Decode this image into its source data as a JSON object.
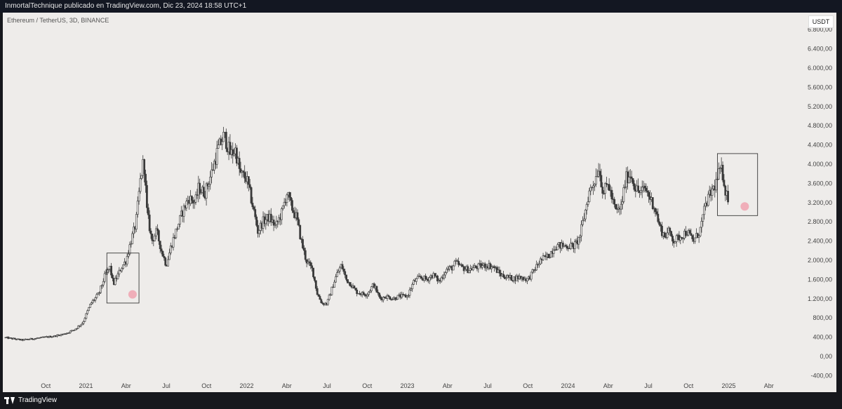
{
  "header": {
    "caption": "InmortalTechnique publicado en TradingView.com, Dic 23, 2024 18:58 UTC+1"
  },
  "symbol_label": "Ethereum / TetherUS, 3D, BINANCE",
  "unit_badge": "USDT",
  "footer": {
    "brand": "TradingView"
  },
  "colors": {
    "background": "#eeecea",
    "candles": "#3a3a3a",
    "highlight": "#f0a3b0",
    "frame": "#222222"
  },
  "chart_data": {
    "type": "candlestick",
    "y_ticks": [
      "-400,00",
      "0,00",
      "400,00",
      "800,00",
      "1.200,00",
      "1.600,00",
      "2.000,00",
      "2.400,00",
      "2.800,00",
      "3.200,00",
      "3.600,00",
      "4.000,00",
      "4.400,00",
      "4.800,00",
      "5.200,00",
      "5.600,00",
      "6.000,00",
      "6.400,00",
      "6.800,00"
    ],
    "y_tick_values": [
      -400,
      0,
      400,
      800,
      1200,
      1600,
      2000,
      2400,
      2800,
      3200,
      3600,
      4000,
      4400,
      4800,
      5200,
      5600,
      6000,
      6400,
      6800
    ],
    "ylim": [
      -400,
      6800
    ],
    "xlim": [
      2020.5,
      2025.42
    ],
    "x_ticks": [
      {
        "label": "Oct",
        "t": 2020.75
      },
      {
        "label": "2021",
        "t": 2021.0
      },
      {
        "label": "Abr",
        "t": 2021.25
      },
      {
        "label": "Jul",
        "t": 2021.5
      },
      {
        "label": "Oct",
        "t": 2021.75
      },
      {
        "label": "2022",
        "t": 2022.0
      },
      {
        "label": "Abr",
        "t": 2022.25
      },
      {
        "label": "Jul",
        "t": 2022.5
      },
      {
        "label": "Oct",
        "t": 2022.75
      },
      {
        "label": "2023",
        "t": 2023.0
      },
      {
        "label": "Abr",
        "t": 2023.25
      },
      {
        "label": "Jul",
        "t": 2023.5
      },
      {
        "label": "Oct",
        "t": 2023.75
      },
      {
        "label": "2024",
        "t": 2024.0
      },
      {
        "label": "Abr",
        "t": 2024.25
      },
      {
        "label": "Jul",
        "t": 2024.5
      },
      {
        "label": "Oct",
        "t": 2024.75
      },
      {
        "label": "2025",
        "t": 2025.0
      },
      {
        "label": "Abr",
        "t": 2025.25
      }
    ],
    "price_path": [
      [
        2020.5,
        390
      ],
      [
        2020.6,
        340
      ],
      [
        2020.7,
        380
      ],
      [
        2020.8,
        420
      ],
      [
        2020.87,
        470
      ],
      [
        2020.93,
        560
      ],
      [
        2020.98,
        700
      ],
      [
        2021.03,
        1100
      ],
      [
        2021.08,
        1300
      ],
      [
        2021.12,
        1700
      ],
      [
        2021.15,
        1850
      ],
      [
        2021.17,
        1500
      ],
      [
        2021.2,
        1700
      ],
      [
        2021.22,
        1850
      ],
      [
        2021.25,
        2000
      ],
      [
        2021.28,
        2400
      ],
      [
        2021.31,
        2750
      ],
      [
        2021.34,
        3700
      ],
      [
        2021.36,
        4100
      ],
      [
        2021.38,
        3000
      ],
      [
        2021.41,
        2400
      ],
      [
        2021.44,
        2600
      ],
      [
        2021.47,
        2200
      ],
      [
        2021.5,
        1900
      ],
      [
        2021.53,
        2300
      ],
      [
        2021.56,
        2600
      ],
      [
        2021.6,
        3000
      ],
      [
        2021.64,
        3300
      ],
      [
        2021.68,
        3200
      ],
      [
        2021.7,
        3500
      ],
      [
        2021.74,
        3400
      ],
      [
        2021.78,
        3800
      ],
      [
        2021.82,
        4300
      ],
      [
        2021.86,
        4600
      ],
      [
        2021.9,
        4200
      ],
      [
        2021.93,
        4300
      ],
      [
        2021.96,
        3800
      ],
      [
        2022.0,
        3700
      ],
      [
        2022.04,
        3100
      ],
      [
        2022.07,
        2600
      ],
      [
        2022.1,
        2800
      ],
      [
        2022.14,
        2900
      ],
      [
        2022.18,
        2700
      ],
      [
        2022.22,
        3000
      ],
      [
        2022.25,
        3400
      ],
      [
        2022.28,
        3100
      ],
      [
        2022.31,
        2900
      ],
      [
        2022.34,
        2400
      ],
      [
        2022.37,
        2000
      ],
      [
        2022.41,
        1800
      ],
      [
        2022.44,
        1300
      ],
      [
        2022.47,
        1100
      ],
      [
        2022.5,
        1100
      ],
      [
        2022.53,
        1400
      ],
      [
        2022.56,
        1700
      ],
      [
        2022.59,
        1900
      ],
      [
        2022.62,
        1600
      ],
      [
        2022.65,
        1500
      ],
      [
        2022.68,
        1350
      ],
      [
        2022.72,
        1300
      ],
      [
        2022.75,
        1300
      ],
      [
        2022.79,
        1500
      ],
      [
        2022.83,
        1200
      ],
      [
        2022.87,
        1250
      ],
      [
        2022.91,
        1200
      ],
      [
        2022.95,
        1250
      ],
      [
        2023.0,
        1250
      ],
      [
        2023.04,
        1550
      ],
      [
        2023.08,
        1650
      ],
      [
        2023.12,
        1600
      ],
      [
        2023.16,
        1700
      ],
      [
        2023.2,
        1550
      ],
      [
        2023.24,
        1800
      ],
      [
        2023.28,
        1850
      ],
      [
        2023.3,
        1950
      ],
      [
        2023.34,
        1850
      ],
      [
        2023.38,
        1800
      ],
      [
        2023.42,
        1850
      ],
      [
        2023.46,
        1880
      ],
      [
        2023.5,
        1900
      ],
      [
        2023.54,
        1850
      ],
      [
        2023.58,
        1700
      ],
      [
        2023.62,
        1650
      ],
      [
        2023.66,
        1620
      ],
      [
        2023.7,
        1650
      ],
      [
        2023.75,
        1600
      ],
      [
        2023.79,
        1800
      ],
      [
        2023.83,
        2000
      ],
      [
        2023.88,
        2100
      ],
      [
        2023.92,
        2300
      ],
      [
        2023.96,
        2300
      ],
      [
        2024.0,
        2300
      ],
      [
        2024.04,
        2300
      ],
      [
        2024.07,
        2450
      ],
      [
        2024.1,
        2900
      ],
      [
        2024.13,
        3400
      ],
      [
        2024.17,
        3700
      ],
      [
        2024.19,
        3950
      ],
      [
        2024.22,
        3400
      ],
      [
        2024.25,
        3600
      ],
      [
        2024.28,
        3200
      ],
      [
        2024.3,
        3000
      ],
      [
        2024.33,
        3100
      ],
      [
        2024.36,
        3700
      ],
      [
        2024.39,
        3800
      ],
      [
        2024.42,
        3500
      ],
      [
        2024.45,
        3400
      ],
      [
        2024.48,
        3500
      ],
      [
        2024.51,
        3300
      ],
      [
        2024.54,
        3100
      ],
      [
        2024.57,
        2700
      ],
      [
        2024.6,
        2500
      ],
      [
        2024.63,
        2600
      ],
      [
        2024.66,
        2400
      ],
      [
        2024.7,
        2500
      ],
      [
        2024.74,
        2600
      ],
      [
        2024.78,
        2400
      ],
      [
        2024.82,
        2600
      ],
      [
        2024.86,
        3200
      ],
      [
        2024.89,
        3400
      ],
      [
        2024.92,
        3600
      ],
      [
        2024.95,
        3900
      ],
      [
        2024.97,
        3700
      ],
      [
        2024.98,
        3400
      ],
      [
        2025.0,
        3300
      ]
    ],
    "annotations": [
      {
        "type": "box",
        "t1": 2021.13,
        "t2": 2021.33,
        "p1": 1110,
        "p2": 2150
      },
      {
        "type": "circle",
        "t": 2021.29,
        "p": 1290
      },
      {
        "type": "box",
        "t1": 2024.93,
        "t2": 2025.18,
        "p1": 2930,
        "p2": 4220
      },
      {
        "type": "circle",
        "t": 2025.1,
        "p": 3120
      }
    ]
  }
}
